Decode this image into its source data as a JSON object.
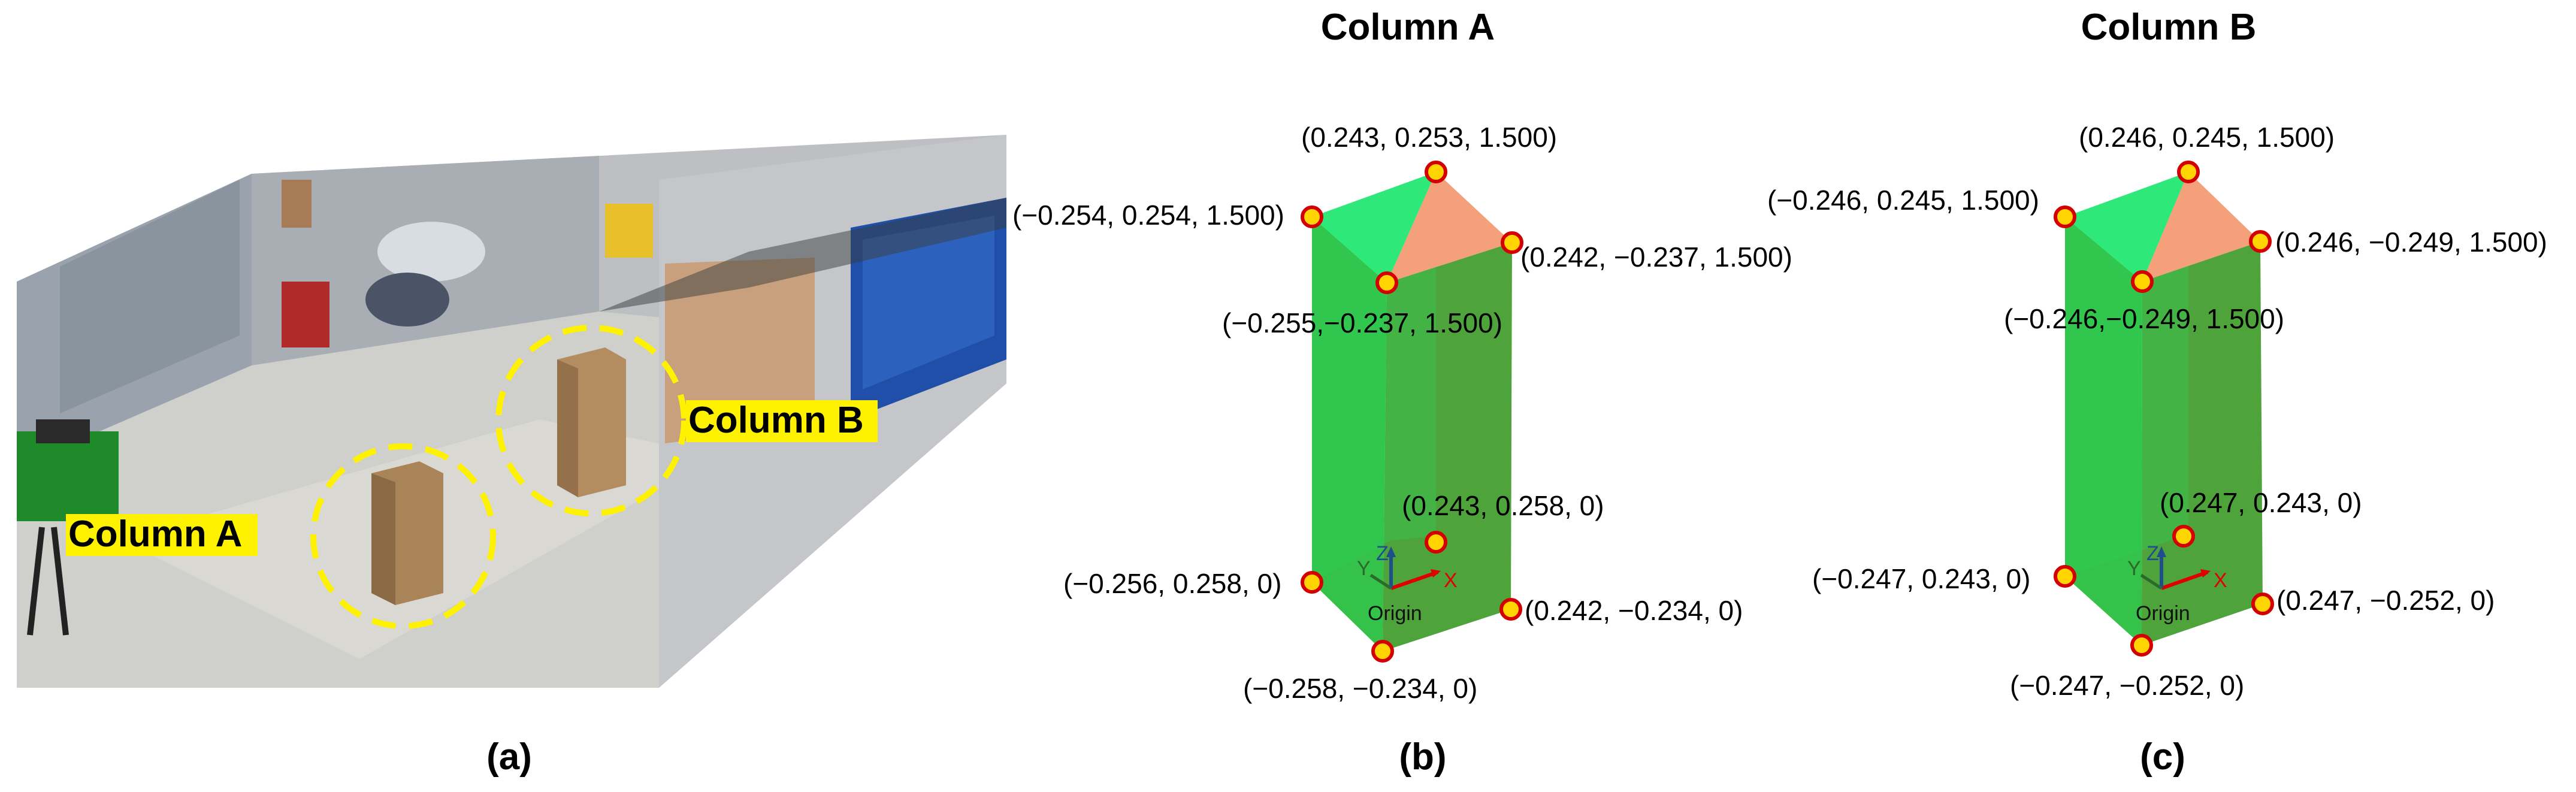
{
  "panel_a": {
    "caption": "(a)",
    "labels": {
      "column_a": "Column A",
      "column_b": "Column B"
    },
    "highlight_color": "#fff200"
  },
  "panel_b": {
    "title": "Column A",
    "caption": "(b)",
    "points": {
      "top_back_left": "(−0.254, 0.254, 1.500)",
      "top_back_right": "(0.243, 0.253, 1.500)",
      "top_front_right": "(0.242, −0.237, 1.500)",
      "top_front_left": "(−0.255,−0.237, 1.500)",
      "bottom_back_right": "(0.243, 0.258, 0)",
      "bottom_back_left": "(−0.256, 0.258, 0)",
      "bottom_front_right": "(0.242, −0.234, 0)",
      "bottom_front_left": "(−0.258, −0.234, 0)"
    },
    "axes": {
      "x": "X",
      "y": "Y",
      "z": "Z",
      "origin": "Origin"
    }
  },
  "panel_c": {
    "title": "Column B",
    "caption": "(c)",
    "points": {
      "top_back_left": "(−0.246, 0.245, 1.500)",
      "top_back_right": "(0.246, 0.245, 1.500)",
      "top_front_right": "(0.246, −0.249, 1.500)",
      "top_front_left": "(−0.246,−0.249, 1.500)",
      "bottom_back_right": "(0.247, 0.243, 0)",
      "bottom_back_left": "(−0.247, 0.243, 0)",
      "bottom_front_right": "(0.247, −0.252, 0)",
      "bottom_front_left": "(−0.247, −0.252, 0)"
    },
    "axes": {
      "x": "X",
      "y": "Y",
      "z": "Z",
      "origin": "Origin"
    }
  },
  "colors": {
    "face_green": "#22c55e",
    "face_dark_green": "#4a9a3a",
    "top_green": "#2ee87a",
    "top_orange": "#f4a07a",
    "bottom_orange": "#ffd27a",
    "bottom_teal": "#3fd68e",
    "vertex_fill": "#ffd400",
    "vertex_stroke": "#d40000",
    "x_axis": "#e00000",
    "z_axis": "#1f4e8c",
    "y_axis": "#2a6a2a"
  }
}
